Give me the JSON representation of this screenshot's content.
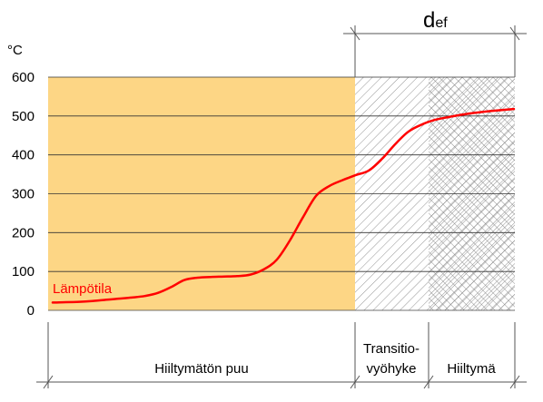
{
  "labels": {
    "def_main": "d",
    "def_sub": "ef",
    "unit": "°C",
    "curve_label": "Lämpötila",
    "zone_unburnt": "Hiiltymätön puu",
    "zone_transition_line1": "Transitio-",
    "zone_transition_line2": "vyöhyke",
    "zone_char": "Hiiltymä"
  },
  "colors": {
    "unburnt_fill": "#fdd685",
    "curve": "#ff0000",
    "grid": "#222222",
    "axis": "#666666"
  },
  "chart_data": {
    "type": "line",
    "title": "",
    "xlabel": "",
    "ylabel": "°C",
    "ylim": [
      0,
      600
    ],
    "y_ticks": [
      0,
      100,
      200,
      300,
      400,
      500,
      600
    ],
    "y_tick_labels": [
      "0",
      "100",
      "200",
      "300",
      "400",
      "500",
      "600"
    ],
    "grid": true,
    "series": [
      {
        "name": "Lämpötila",
        "color": "#ff0000",
        "y": [
          20,
          21,
          22,
          24,
          27,
          30,
          33,
          37,
          45,
          60,
          78,
          84,
          86,
          87,
          88,
          92,
          105,
          130,
          180,
          240,
          295,
          320,
          335,
          348,
          360,
          390,
          428,
          460,
          478,
          490,
          497,
          503,
          508,
          512,
          515,
          518
        ]
      }
    ]
  }
}
